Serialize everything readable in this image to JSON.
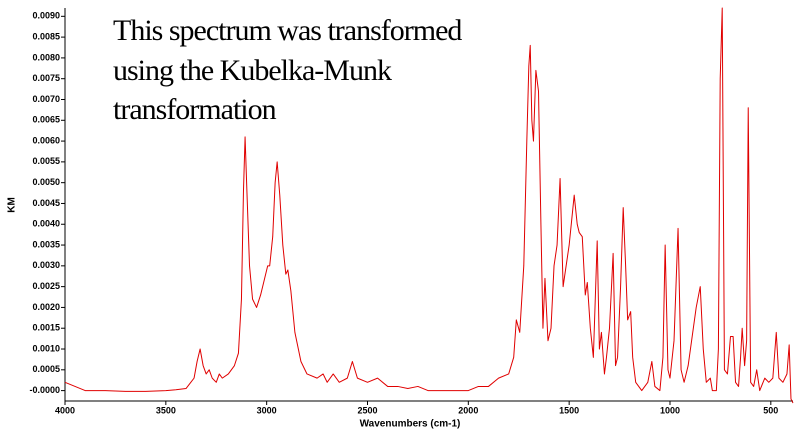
{
  "chart_data": {
    "type": "line",
    "annotation": [
      "This spectrum was transformed",
      "using the Kubelka-Munk",
      "transformation"
    ],
    "xlabel": "Wavenumbers (cm-1)",
    "ylabel": "KM",
    "color": "#e00000",
    "xlim": [
      4000,
      390
    ],
    "ylim": [
      -0.00025,
      0.0092
    ],
    "xticks": [
      4000,
      3500,
      3000,
      2500,
      2000,
      1500,
      1000,
      500
    ],
    "yticks": [
      {
        "value": 0.009,
        "label": "0.0090"
      },
      {
        "value": 0.0085,
        "label": "0.0085"
      },
      {
        "value": 0.008,
        "label": "0.0080"
      },
      {
        "value": 0.0075,
        "label": "0.0075"
      },
      {
        "value": 0.007,
        "label": "0.0070"
      },
      {
        "value": 0.0065,
        "label": "0.0065"
      },
      {
        "value": 0.006,
        "label": "0.0060"
      },
      {
        "value": 0.0055,
        "label": "0.0055"
      },
      {
        "value": 0.005,
        "label": "0.0050"
      },
      {
        "value": 0.0045,
        "label": "0.0045"
      },
      {
        "value": 0.004,
        "label": "0.0040"
      },
      {
        "value": 0.0035,
        "label": "0.0035"
      },
      {
        "value": 0.003,
        "label": "0.0030"
      },
      {
        "value": 0.0025,
        "label": "0.0025"
      },
      {
        "value": 0.002,
        "label": "0.0020"
      },
      {
        "value": 0.0015,
        "label": "0.0015"
      },
      {
        "value": 0.001,
        "label": "0.0010"
      },
      {
        "value": 0.0005,
        "label": "0.0005"
      },
      {
        "value": 0,
        "label": "-0.0000"
      }
    ],
    "x": [
      4000,
      3950,
      3900,
      3800,
      3700,
      3600,
      3500,
      3450,
      3400,
      3360,
      3345,
      3330,
      3315,
      3300,
      3285,
      3270,
      3250,
      3235,
      3220,
      3190,
      3160,
      3140,
      3125,
      3115,
      3107,
      3098,
      3085,
      3070,
      3050,
      3030,
      3010,
      2995,
      2985,
      2970,
      2958,
      2948,
      2935,
      2920,
      2905,
      2895,
      2880,
      2860,
      2830,
      2800,
      2750,
      2720,
      2700,
      2670,
      2640,
      2600,
      2575,
      2550,
      2500,
      2450,
      2400,
      2350,
      2300,
      2250,
      2200,
      2100,
      2000,
      1950,
      1900,
      1850,
      1800,
      1775,
      1762,
      1745,
      1725,
      1710,
      1700,
      1693,
      1685,
      1677,
      1665,
      1652,
      1640,
      1630,
      1620,
      1605,
      1590,
      1575,
      1560,
      1545,
      1530,
      1515,
      1500,
      1475,
      1460,
      1450,
      1435,
      1420,
      1410,
      1395,
      1380,
      1361,
      1350,
      1340,
      1325,
      1315,
      1300,
      1282,
      1270,
      1260,
      1245,
      1232,
      1220,
      1210,
      1195,
      1185,
      1170,
      1140,
      1110,
      1090,
      1075,
      1050,
      1035,
      1024,
      1010,
      1000,
      980,
      960,
      945,
      930,
      910,
      890,
      870,
      850,
      835,
      820,
      800,
      790,
      770,
      760,
      751,
      741,
      730,
      715,
      700,
      687,
      675,
      660,
      650,
      642,
      630,
      620,
      612,
      600,
      585,
      570,
      555,
      530,
      510,
      490,
      473,
      460,
      440,
      420,
      409,
      400,
      390
    ],
    "values": [
      0.0002,
      0.0001,
      0,
      0,
      -2e-05,
      -2e-05,
      0,
      2e-05,
      5e-05,
      0.0003,
      0.0007,
      0.001,
      0.0006,
      0.0004,
      0.0005,
      0.0003,
      0.0002,
      0.0004,
      0.0003,
      0.0004,
      0.0006,
      0.0009,
      0.0022,
      0.0048,
      0.0061,
      0.0048,
      0.003,
      0.0022,
      0.002,
      0.0023,
      0.0027,
      0.003,
      0.003,
      0.0037,
      0.005,
      0.0055,
      0.0047,
      0.0035,
      0.0028,
      0.0029,
      0.0024,
      0.0014,
      0.0007,
      0.0004,
      0.0003,
      0.0004,
      0.0002,
      0.0004,
      0.0002,
      0.0003,
      0.0007,
      0.0003,
      0.0002,
      0.0003,
      0.0001,
      0.0001,
      5e-05,
      0.0001,
      0,
      0,
      0,
      0.0001,
      0.0001,
      0.0003,
      0.0004,
      0.0008,
      0.0017,
      0.0014,
      0.003,
      0.006,
      0.0078,
      0.0083,
      0.0065,
      0.006,
      0.0077,
      0.0072,
      0.004,
      0.0015,
      0.0027,
      0.0012,
      0.0015,
      0.003,
      0.0035,
      0.0051,
      0.0025,
      0.003,
      0.0035,
      0.0047,
      0.004,
      0.0038,
      0.0037,
      0.0023,
      0.0026,
      0.0015,
      0.0008,
      0.0036,
      0.001,
      0.0014,
      0.0004,
      0.0008,
      0.0015,
      0.0033,
      0.0006,
      0.0008,
      0.0025,
      0.0044,
      0.003,
      0.0017,
      0.0019,
      0.0008,
      0.0002,
      0,
      0.0002,
      0.0007,
      0.0001,
      0,
      0.0008,
      0.0035,
      0.0005,
      0.0003,
      0.0012,
      0.0039,
      0.0005,
      0.0002,
      0.0006,
      0.0013,
      0.002,
      0.0025,
      0.001,
      0.0002,
      0.0003,
      0,
      0,
      0.001,
      0.0075,
      0.0092,
      0.0005,
      0.0004,
      0.0013,
      0.0013,
      0.0002,
      0.0001,
      0.0008,
      0.0015,
      0.0006,
      0.0012,
      0.0068,
      0.0002,
      0.0001,
      0.0005,
      0,
      0.0003,
      0.0002,
      0.0003,
      0.0014,
      0.0003,
      0.0002,
      0.0004,
      0.0011,
      -0.0002,
      -0.0003
    ]
  }
}
